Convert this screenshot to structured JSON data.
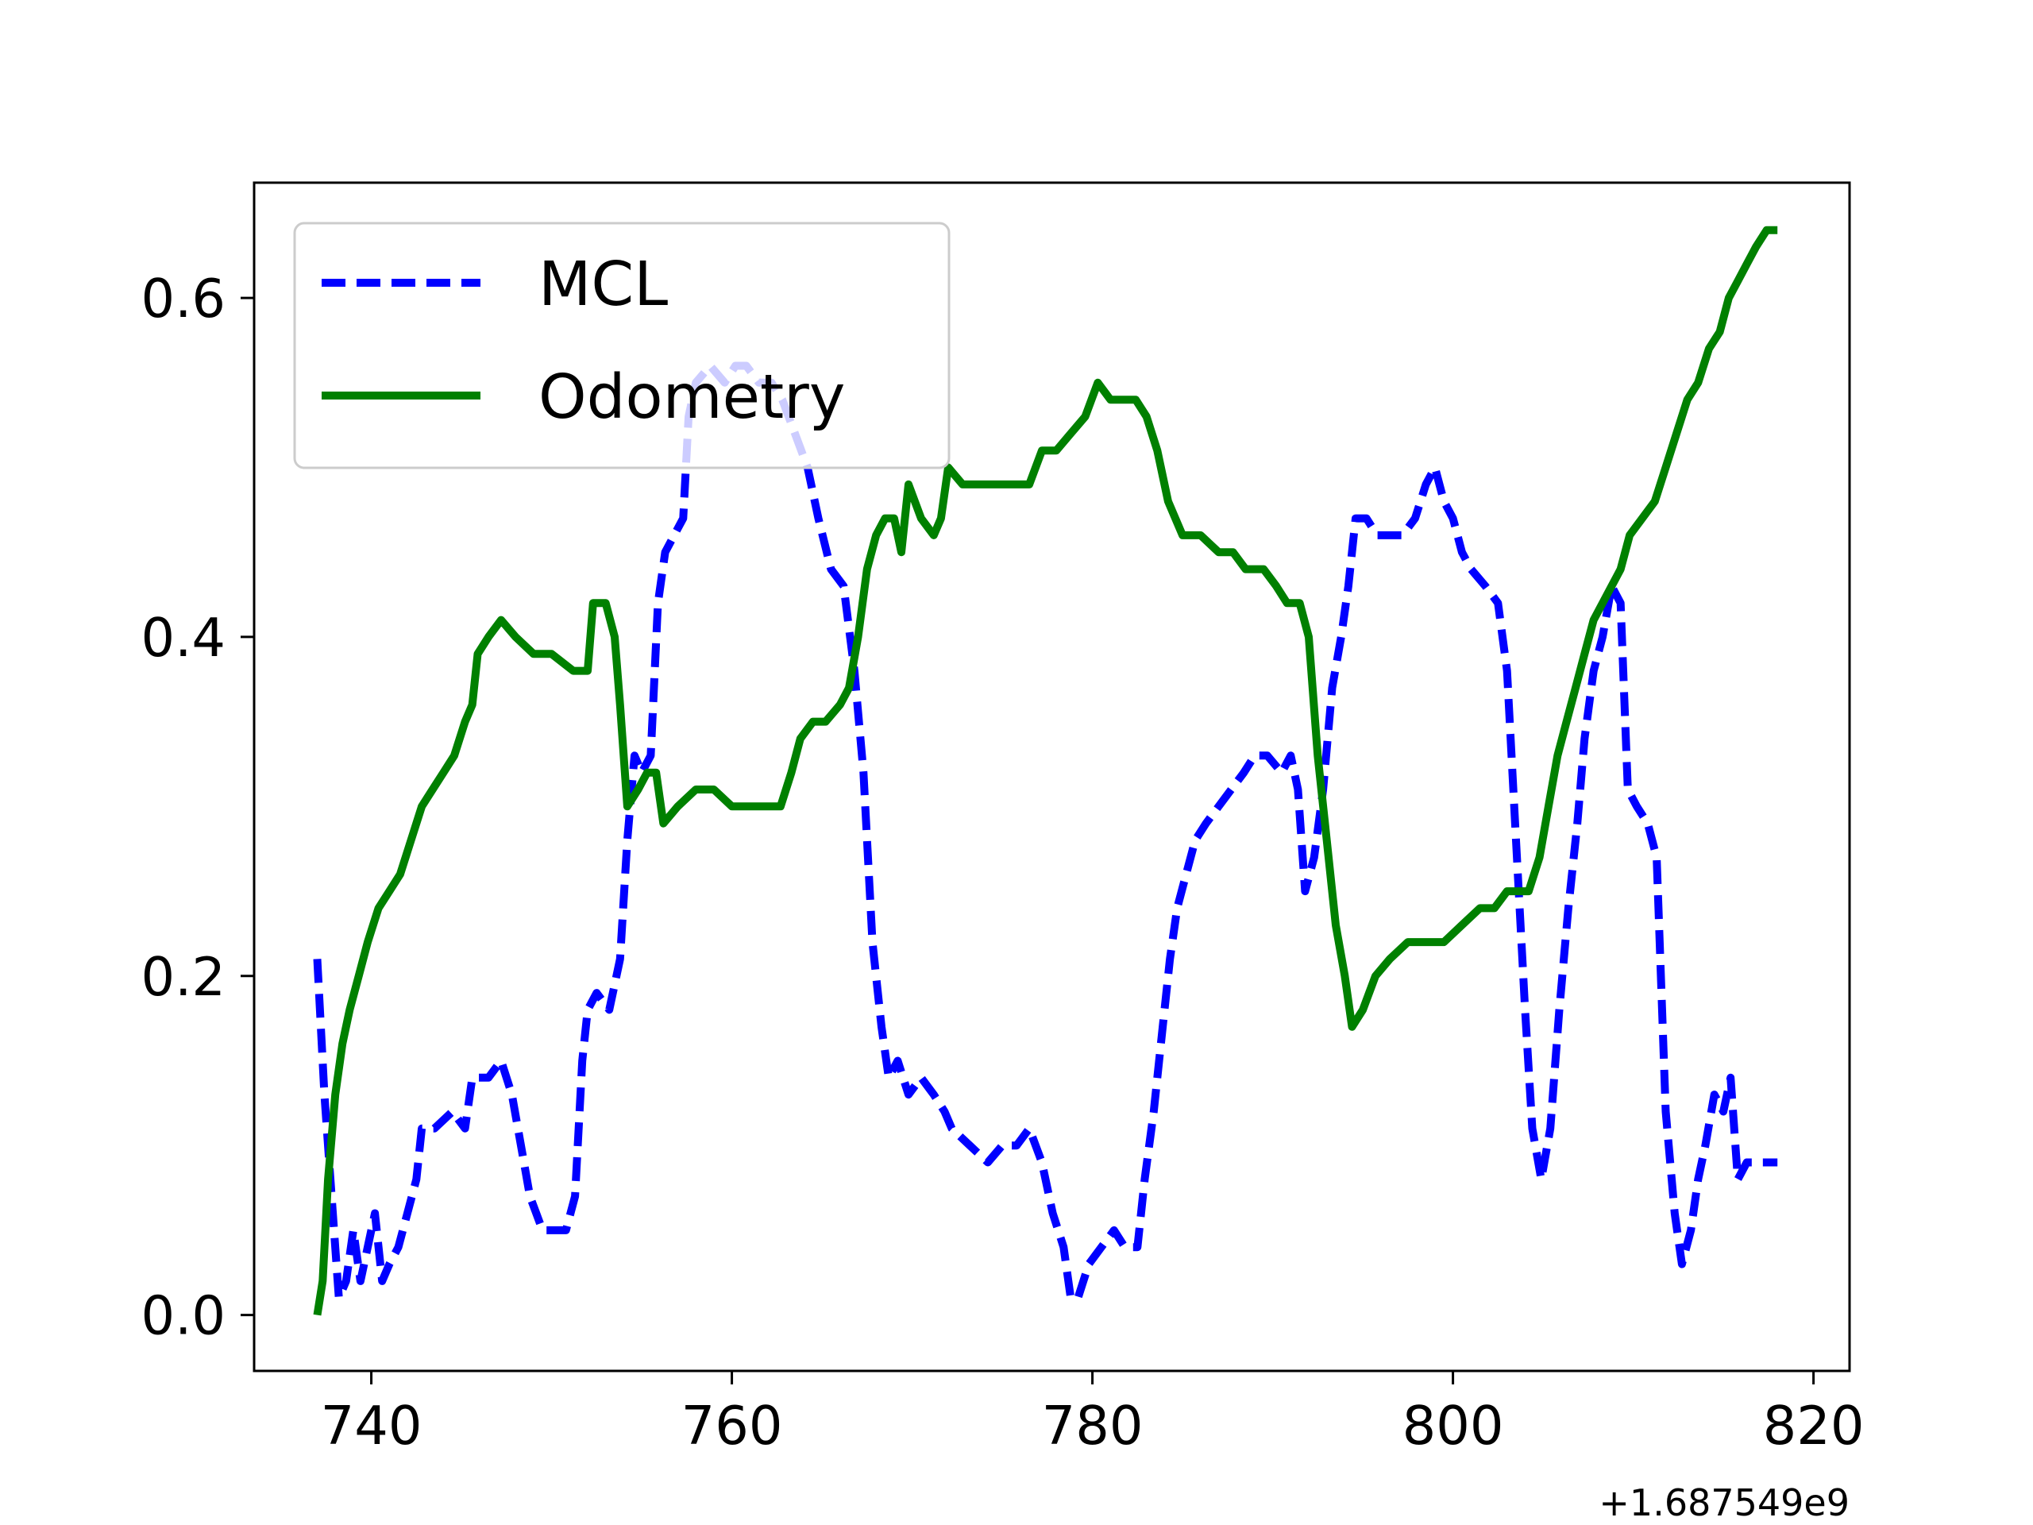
{
  "chart_data": {
    "type": "line",
    "title": "",
    "xlabel": "",
    "ylabel": "",
    "x_offset_label": "+1.687549e9",
    "xlim": [
      733.5,
      822
    ],
    "ylim": [
      -0.033,
      0.668
    ],
    "x_ticks": [
      740,
      760,
      780,
      800,
      820
    ],
    "y_ticks": [
      0.0,
      0.2,
      0.4,
      0.6
    ],
    "x_tick_labels": [
      "740",
      "760",
      "780",
      "800",
      "820"
    ],
    "y_tick_labels": [
      "0.0",
      "0.2",
      "0.4",
      "0.6"
    ],
    "grid": false,
    "legend": {
      "position": "top-left"
    },
    "series": [
      {
        "name": "MCL",
        "style": "dashed",
        "color": "#0000ff",
        "points": [
          [
            737.0,
            0.21
          ],
          [
            737.4,
            0.13
          ],
          [
            737.8,
            0.07
          ],
          [
            738.2,
            0.01
          ],
          [
            738.6,
            0.02
          ],
          [
            739.0,
            0.05
          ],
          [
            739.4,
            0.02
          ],
          [
            739.8,
            0.04
          ],
          [
            740.2,
            0.06
          ],
          [
            740.6,
            0.02
          ],
          [
            741.0,
            0.03
          ],
          [
            741.5,
            0.04
          ],
          [
            742.0,
            0.06
          ],
          [
            742.5,
            0.08
          ],
          [
            742.8,
            0.11
          ],
          [
            743.5,
            0.11
          ],
          [
            744.5,
            0.12
          ],
          [
            745.2,
            0.11
          ],
          [
            745.6,
            0.14
          ],
          [
            746.5,
            0.14
          ],
          [
            747.2,
            0.15
          ],
          [
            747.8,
            0.13
          ],
          [
            748.3,
            0.1
          ],
          [
            748.8,
            0.07
          ],
          [
            749.5,
            0.05
          ],
          [
            750.2,
            0.05
          ],
          [
            750.8,
            0.05
          ],
          [
            751.3,
            0.07
          ],
          [
            751.7,
            0.15
          ],
          [
            752.0,
            0.18
          ],
          [
            752.5,
            0.19
          ],
          [
            753.2,
            0.18
          ],
          [
            753.8,
            0.21
          ],
          [
            754.2,
            0.28
          ],
          [
            754.6,
            0.33
          ],
          [
            755.0,
            0.32
          ],
          [
            755.5,
            0.33
          ],
          [
            755.9,
            0.42
          ],
          [
            756.3,
            0.45
          ],
          [
            756.8,
            0.46
          ],
          [
            757.3,
            0.47
          ],
          [
            757.6,
            0.53
          ],
          [
            758.0,
            0.55
          ],
          [
            758.8,
            0.56
          ],
          [
            759.6,
            0.55
          ],
          [
            760.2,
            0.56
          ],
          [
            760.8,
            0.56
          ],
          [
            761.5,
            0.55
          ],
          [
            762.2,
            0.55
          ],
          [
            762.8,
            0.54
          ],
          [
            763.5,
            0.52
          ],
          [
            764.2,
            0.5
          ],
          [
            764.8,
            0.47
          ],
          [
            765.5,
            0.44
          ],
          [
            766.2,
            0.43
          ],
          [
            766.8,
            0.38
          ],
          [
            767.3,
            0.32
          ],
          [
            767.8,
            0.22
          ],
          [
            768.3,
            0.17
          ],
          [
            768.7,
            0.14
          ],
          [
            769.2,
            0.15
          ],
          [
            769.8,
            0.13
          ],
          [
            770.5,
            0.14
          ],
          [
            771.2,
            0.13
          ],
          [
            771.8,
            0.12
          ],
          [
            772.2,
            0.11
          ],
          [
            773.2,
            0.1
          ],
          [
            774.2,
            0.09
          ],
          [
            775.0,
            0.1
          ],
          [
            775.8,
            0.1
          ],
          [
            776.5,
            0.11
          ],
          [
            777.2,
            0.09
          ],
          [
            777.8,
            0.06
          ],
          [
            778.4,
            0.04
          ],
          [
            778.8,
            0.01
          ],
          [
            779.2,
            0.01
          ],
          [
            779.8,
            0.03
          ],
          [
            780.5,
            0.04
          ],
          [
            781.2,
            0.05
          ],
          [
            781.8,
            0.04
          ],
          [
            782.5,
            0.04
          ],
          [
            782.9,
            0.08
          ],
          [
            783.4,
            0.12
          ],
          [
            783.9,
            0.17
          ],
          [
            784.3,
            0.21
          ],
          [
            784.7,
            0.24
          ],
          [
            785.2,
            0.26
          ],
          [
            785.7,
            0.28
          ],
          [
            786.3,
            0.29
          ],
          [
            787.0,
            0.3
          ],
          [
            787.7,
            0.31
          ],
          [
            788.4,
            0.32
          ],
          [
            789.0,
            0.33
          ],
          [
            789.7,
            0.33
          ],
          [
            790.5,
            0.32
          ],
          [
            791.0,
            0.33
          ],
          [
            791.4,
            0.31
          ],
          [
            791.8,
            0.25
          ],
          [
            792.3,
            0.27
          ],
          [
            792.8,
            0.31
          ],
          [
            793.3,
            0.37
          ],
          [
            793.8,
            0.4
          ],
          [
            794.2,
            0.43
          ],
          [
            794.6,
            0.47
          ],
          [
            795.2,
            0.47
          ],
          [
            795.8,
            0.46
          ],
          [
            796.5,
            0.46
          ],
          [
            797.2,
            0.46
          ],
          [
            797.9,
            0.47
          ],
          [
            798.5,
            0.49
          ],
          [
            799.0,
            0.5
          ],
          [
            799.5,
            0.48
          ],
          [
            800.0,
            0.47
          ],
          [
            800.5,
            0.45
          ],
          [
            801.0,
            0.44
          ],
          [
            801.8,
            0.43
          ],
          [
            802.5,
            0.42
          ],
          [
            803.0,
            0.38
          ],
          [
            803.5,
            0.28
          ],
          [
            804.0,
            0.18
          ],
          [
            804.4,
            0.11
          ],
          [
            804.9,
            0.08
          ],
          [
            805.4,
            0.11
          ],
          [
            805.9,
            0.18
          ],
          [
            806.4,
            0.24
          ],
          [
            806.9,
            0.29
          ],
          [
            807.3,
            0.34
          ],
          [
            807.8,
            0.38
          ],
          [
            808.3,
            0.4
          ],
          [
            808.8,
            0.43
          ],
          [
            809.3,
            0.42
          ],
          [
            809.7,
            0.31
          ],
          [
            810.2,
            0.3
          ],
          [
            810.8,
            0.29
          ],
          [
            811.3,
            0.27
          ],
          [
            811.8,
            0.12
          ],
          [
            812.3,
            0.06
          ],
          [
            812.7,
            0.03
          ],
          [
            813.2,
            0.05
          ],
          [
            813.6,
            0.08
          ],
          [
            814.0,
            0.1
          ],
          [
            814.5,
            0.13
          ],
          [
            815.0,
            0.12
          ],
          [
            815.4,
            0.14
          ],
          [
            815.8,
            0.08
          ],
          [
            816.3,
            0.09
          ],
          [
            817.0,
            0.09
          ],
          [
            817.5,
            0.09
          ],
          [
            818.0,
            0.09
          ]
        ]
      },
      {
        "name": "Odometry",
        "style": "solid",
        "color": "#008000",
        "points": [
          [
            737.0,
            0.0
          ],
          [
            737.3,
            0.02
          ],
          [
            737.6,
            0.08
          ],
          [
            738.0,
            0.13
          ],
          [
            738.4,
            0.16
          ],
          [
            738.8,
            0.18
          ],
          [
            739.3,
            0.2
          ],
          [
            739.8,
            0.22
          ],
          [
            740.4,
            0.24
          ],
          [
            741.0,
            0.25
          ],
          [
            741.6,
            0.26
          ],
          [
            742.2,
            0.28
          ],
          [
            742.8,
            0.3
          ],
          [
            743.4,
            0.31
          ],
          [
            744.0,
            0.32
          ],
          [
            744.6,
            0.33
          ],
          [
            745.2,
            0.35
          ],
          [
            745.6,
            0.36
          ],
          [
            745.9,
            0.39
          ],
          [
            746.5,
            0.4
          ],
          [
            747.2,
            0.41
          ],
          [
            748.0,
            0.4
          ],
          [
            749.0,
            0.39
          ],
          [
            750.0,
            0.39
          ],
          [
            751.2,
            0.38
          ],
          [
            752.0,
            0.38
          ],
          [
            752.3,
            0.42
          ],
          [
            753.0,
            0.42
          ],
          [
            753.5,
            0.4
          ],
          [
            753.8,
            0.36
          ],
          [
            754.2,
            0.3
          ],
          [
            754.8,
            0.31
          ],
          [
            755.3,
            0.32
          ],
          [
            755.8,
            0.32
          ],
          [
            756.2,
            0.29
          ],
          [
            757.0,
            0.3
          ],
          [
            758.0,
            0.31
          ],
          [
            759.0,
            0.31
          ],
          [
            760.0,
            0.3
          ],
          [
            761.0,
            0.3
          ],
          [
            762.0,
            0.3
          ],
          [
            762.7,
            0.3
          ],
          [
            763.3,
            0.32
          ],
          [
            763.8,
            0.34
          ],
          [
            764.5,
            0.35
          ],
          [
            765.2,
            0.35
          ],
          [
            766.0,
            0.36
          ],
          [
            766.5,
            0.37
          ],
          [
            767.0,
            0.4
          ],
          [
            767.5,
            0.44
          ],
          [
            768.0,
            0.46
          ],
          [
            768.5,
            0.47
          ],
          [
            769.0,
            0.47
          ],
          [
            769.4,
            0.45
          ],
          [
            769.8,
            0.49
          ],
          [
            770.5,
            0.47
          ],
          [
            771.2,
            0.46
          ],
          [
            771.6,
            0.47
          ],
          [
            772.0,
            0.5
          ],
          [
            772.8,
            0.49
          ],
          [
            773.5,
            0.49
          ],
          [
            774.2,
            0.49
          ],
          [
            775.0,
            0.49
          ],
          [
            775.8,
            0.49
          ],
          [
            776.5,
            0.49
          ],
          [
            777.2,
            0.51
          ],
          [
            778.0,
            0.51
          ],
          [
            778.8,
            0.52
          ],
          [
            779.6,
            0.53
          ],
          [
            780.3,
            0.55
          ],
          [
            781.0,
            0.54
          ],
          [
            781.8,
            0.54
          ],
          [
            782.4,
            0.54
          ],
          [
            783.0,
            0.53
          ],
          [
            783.6,
            0.51
          ],
          [
            784.2,
            0.48
          ],
          [
            785.0,
            0.46
          ],
          [
            786.0,
            0.46
          ],
          [
            787.0,
            0.45
          ],
          [
            787.8,
            0.45
          ],
          [
            788.5,
            0.44
          ],
          [
            789.5,
            0.44
          ],
          [
            790.2,
            0.43
          ],
          [
            790.8,
            0.42
          ],
          [
            791.5,
            0.42
          ],
          [
            792.0,
            0.4
          ],
          [
            792.5,
            0.33
          ],
          [
            793.0,
            0.28
          ],
          [
            793.5,
            0.23
          ],
          [
            794.0,
            0.2
          ],
          [
            794.4,
            0.17
          ],
          [
            795.0,
            0.18
          ],
          [
            795.7,
            0.2
          ],
          [
            796.5,
            0.21
          ],
          [
            797.5,
            0.22
          ],
          [
            798.5,
            0.22
          ],
          [
            799.5,
            0.22
          ],
          [
            800.5,
            0.23
          ],
          [
            801.5,
            0.24
          ],
          [
            802.3,
            0.24
          ],
          [
            803.0,
            0.25
          ],
          [
            803.6,
            0.25
          ],
          [
            804.2,
            0.25
          ],
          [
            804.8,
            0.27
          ],
          [
            805.3,
            0.3
          ],
          [
            805.8,
            0.33
          ],
          [
            806.3,
            0.35
          ],
          [
            806.8,
            0.37
          ],
          [
            807.3,
            0.39
          ],
          [
            807.8,
            0.41
          ],
          [
            808.3,
            0.42
          ],
          [
            808.8,
            0.43
          ],
          [
            809.3,
            0.44
          ],
          [
            809.8,
            0.46
          ],
          [
            810.5,
            0.47
          ],
          [
            811.2,
            0.48
          ],
          [
            811.8,
            0.5
          ],
          [
            812.4,
            0.52
          ],
          [
            813.0,
            0.54
          ],
          [
            813.6,
            0.55
          ],
          [
            814.2,
            0.57
          ],
          [
            814.8,
            0.58
          ],
          [
            815.3,
            0.6
          ],
          [
            815.8,
            0.61
          ],
          [
            816.3,
            0.62
          ],
          [
            816.8,
            0.63
          ],
          [
            817.4,
            0.64
          ],
          [
            818.0,
            0.64
          ]
        ]
      }
    ]
  }
}
